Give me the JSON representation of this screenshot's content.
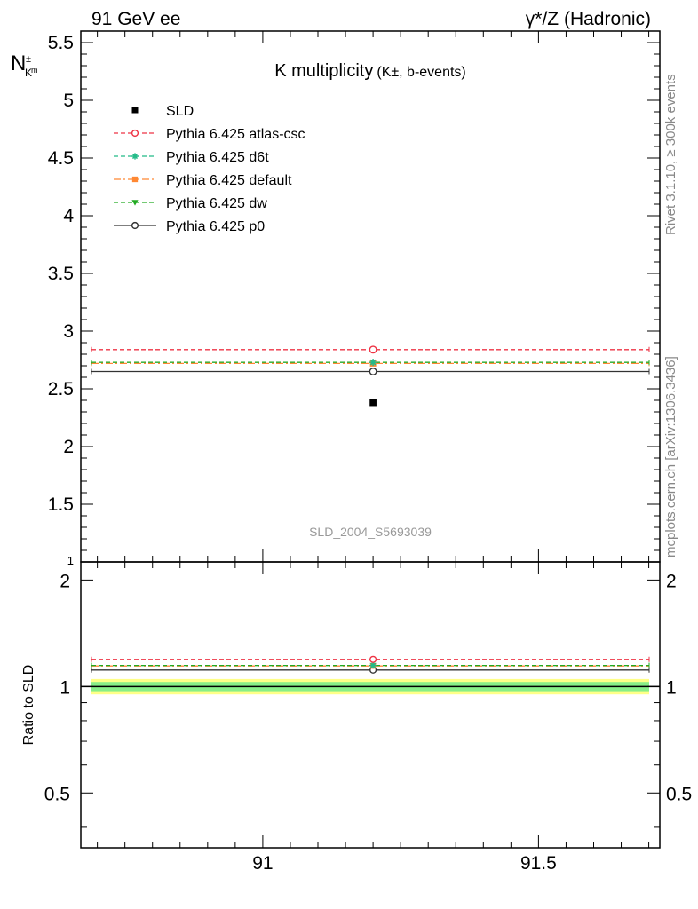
{
  "header": {
    "left": "91 GeV ee",
    "right": "γ*/Z (Hadronic)"
  },
  "side_labels": {
    "rivet": "Rivet 3.1.10, ≥ 300k events",
    "mcplots": "mcplots.cern.ch [arXiv:1306.3436]"
  },
  "chart_data": {
    "type": "scatter",
    "title": "K multiplicity",
    "title_suffix": "(K±, b-events)",
    "ylabel": "N_K±m",
    "ratio_ylabel": "Ratio to SLD",
    "watermark": "SLD_2004_S5693039",
    "xlim": [
      90.67,
      91.72
    ],
    "ylim": [
      1.0,
      5.6
    ],
    "ratio_ylim": [
      0.35,
      2.25
    ],
    "ratio_log": true,
    "x_ticks": [
      "91",
      "91.5"
    ],
    "y_ticks": [
      "1",
      "1.5",
      "2",
      "2.5",
      "3",
      "3.5",
      "4",
      "4.5",
      "5",
      "5.5"
    ],
    "ratio_ticks": [
      "0.5",
      "1",
      "2"
    ],
    "data": {
      "name": "SLD",
      "x": 91.2,
      "y": 2.38,
      "band_inner": [
        0.97,
        1.03
      ],
      "band_outer": [
        0.95,
        1.05
      ]
    },
    "series": [
      {
        "name": "Pythia 6.425 atlas-csc",
        "y": 2.84,
        "ratio": 1.193,
        "color": "#ee3344",
        "marker": "circle-open",
        "dash": "5,3"
      },
      {
        "name": "Pythia 6.425 d6t",
        "y": 2.73,
        "ratio": 1.147,
        "color": "#22bb88",
        "marker": "star",
        "dash": "5,3"
      },
      {
        "name": "Pythia 6.425 default",
        "y": 2.72,
        "ratio": 1.143,
        "color": "#ff8833",
        "marker": "square",
        "dash": "8,3,2,3"
      },
      {
        "name": "Pythia 6.425 dw",
        "y": 2.73,
        "ratio": 1.147,
        "color": "#22aa22",
        "marker": "triangle-down",
        "dash": "5,3"
      },
      {
        "name": "Pythia 6.425 p0",
        "y": 2.65,
        "ratio": 1.113,
        "color": "#333333",
        "marker": "circle-open",
        "dash": ""
      }
    ]
  }
}
